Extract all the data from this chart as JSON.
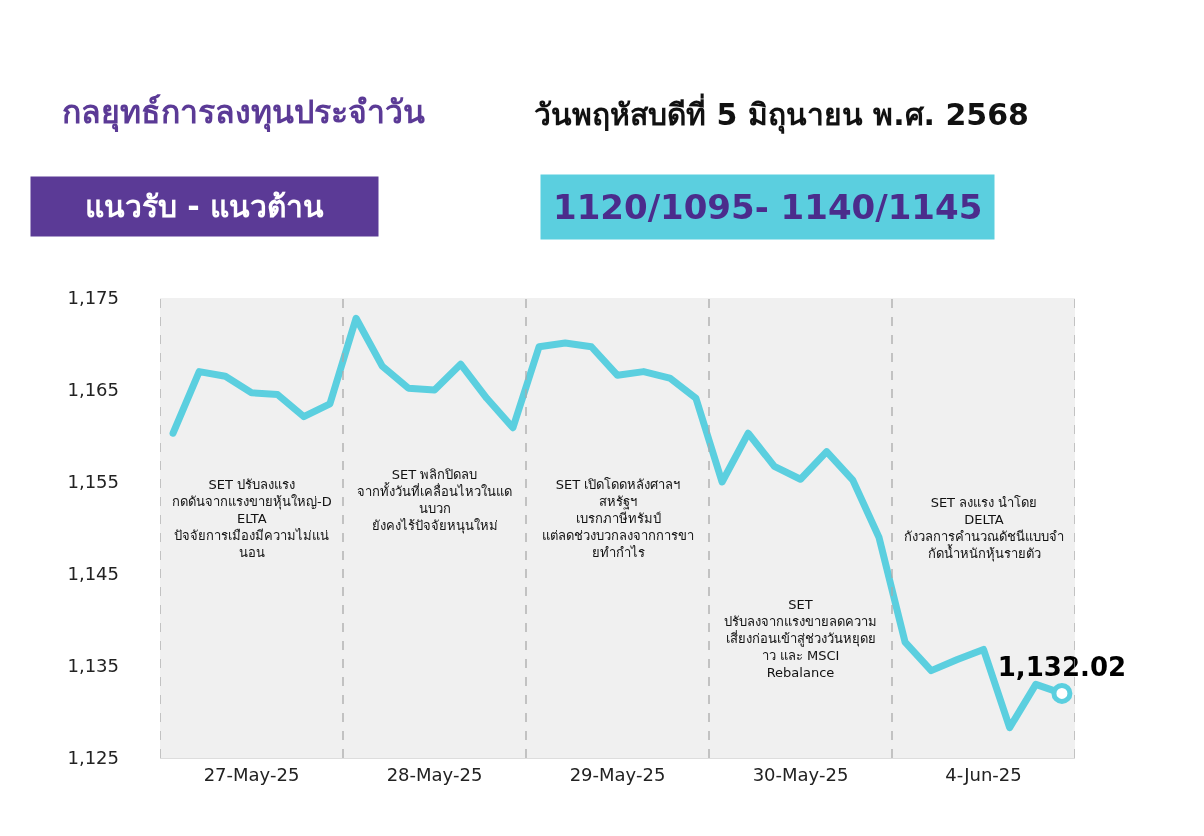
{
  "chart_data": {
    "type": "line",
    "title": "กลยุทธ์การลงทุนประจำวัน",
    "subtitle": "วันพฤหัสบดีที่ 5 มิถุนายน พ.ศ. 2568",
    "categories": [
      null,
      null,
      null,
      "27-May-25",
      null,
      null,
      null,
      null,
      null,
      null,
      "28-May-25",
      null,
      null,
      null,
      null,
      null,
      null,
      "29-May-25",
      null,
      null,
      null,
      null,
      null,
      null,
      "30-May-25",
      null,
      null,
      null,
      null,
      null,
      null,
      "4-Jun-25",
      null,
      null,
      null
    ],
    "series": [
      {
        "color": "#5bcfdf",
        "values": [
          1160.3,
          1167.0,
          1166.5,
          1164.7,
          1164.5,
          1162.1,
          1163.5,
          1172.8,
          1167.6,
          1165.2,
          1165.0,
          1167.8,
          1164.1,
          1160.9,
          1169.7,
          1170.1,
          1169.7,
          1166.6,
          1167.0,
          1166.3,
          1164.1,
          1155.0,
          1160.3,
          1156.7,
          1155.3,
          1158.3,
          1155.2,
          1149.0,
          1137.6,
          1134.5,
          1135.7,
          1136.8,
          1128.3,
          1133.0,
          1132.02
        ],
        "value_labels": [
          null,
          null,
          null,
          null,
          null,
          null,
          null,
          null,
          null,
          null,
          null,
          null,
          null,
          null,
          null,
          null,
          null,
          null,
          null,
          null,
          null,
          null,
          null,
          null,
          null,
          null,
          null,
          null,
          null,
          null,
          null,
          null,
          null,
          null,
          "1,132.02"
        ]
      }
    ],
    "ylim": [
      1125,
      1175
    ],
    "yticks": [
      {
        "value": 1125,
        "label": "1,125"
      },
      {
        "value": 1135,
        "label": "1,135"
      },
      {
        "value": 1145,
        "label": "1,145"
      },
      {
        "value": 1155,
        "label": "1,155"
      },
      {
        "value": 1165,
        "label": "1,165"
      },
      {
        "value": 1175,
        "label": "1,175"
      }
    ],
    "grid": "x",
    "annotations": [
      "แนวรับ - แนวต้าน",
      "1120/1095- 1140/1145",
      "SET ปรับลงแรง กดดันจากแรงขายหุ้นใหญ่-DELTA ปัจจัยการเมืองมีความไม่แน่นอน",
      "SET พลิกปิดลบ จากทั้งวันที่เคลื่อนไหวในแดนบวก ยังคงไร้ปัจจัยหนุนใหม่",
      "SET เปิดโดดหลังศาลฯ สหรัฐฯ เบรกภาษีทรัมป์ แต่ลดช่วงบวกลงจากการขายทำกำไร",
      "SET ปรับลงจากแรงขายลดความเสี่ยงก่อนเข้าสู่ช่วงวันหยุดยาว และ MSCI Rebalance",
      "SET ลงแรง นำโดย DELTA กังวลการคำนวณดัชนีแบบจำกัดน้ำหนักหุ้นรายตัว"
    ]
  }
}
